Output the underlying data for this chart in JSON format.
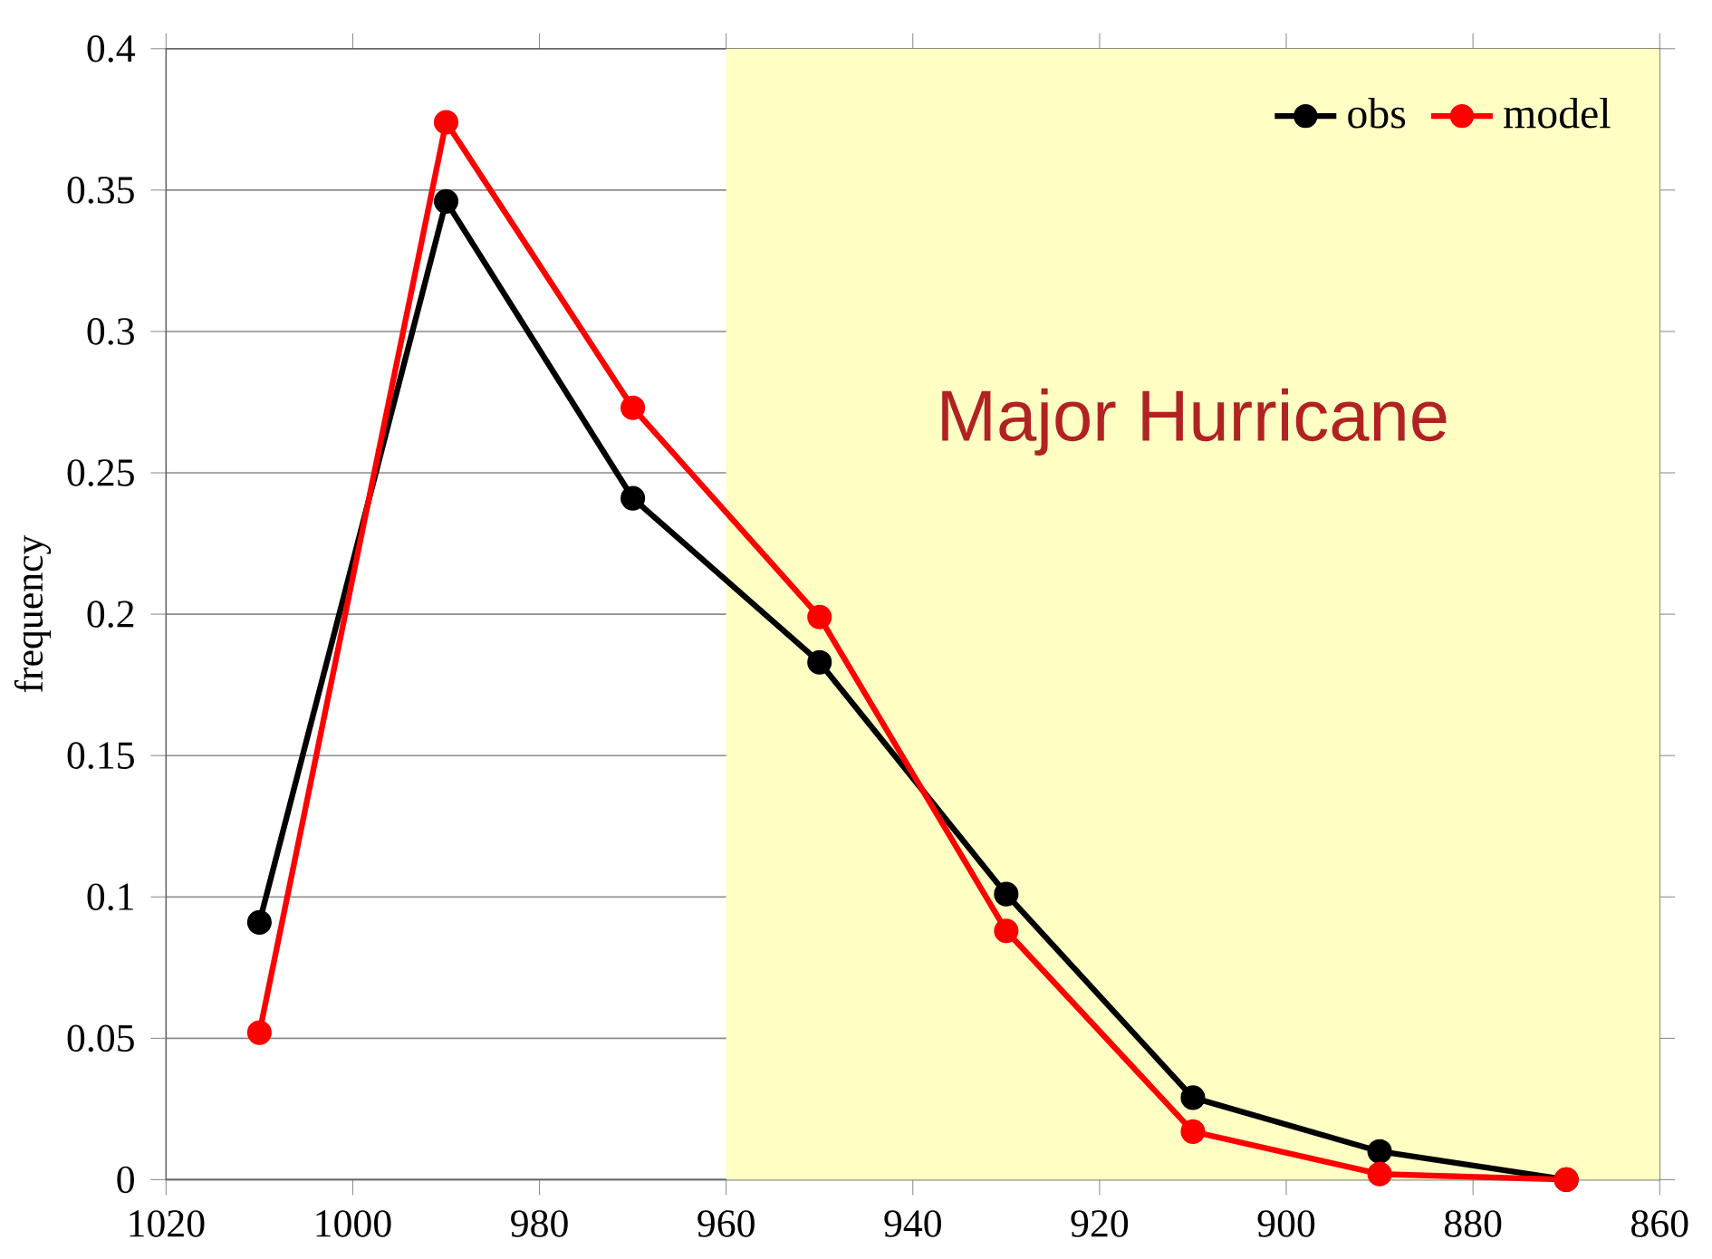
{
  "chart_data": {
    "type": "line",
    "ylabel": "frequency",
    "x": [
      1010,
      990,
      970,
      950,
      930,
      910,
      890,
      870
    ],
    "series": [
      {
        "name": "obs",
        "color": "#000000",
        "values": [
          0.091,
          0.346,
          0.241,
          0.183,
          0.101,
          0.029,
          0.01,
          0.0
        ]
      },
      {
        "name": "model",
        "color": "#ff0000",
        "values": [
          0.052,
          0.374,
          0.273,
          0.199,
          0.088,
          0.017,
          0.002,
          0.0
        ]
      }
    ],
    "xlim": [
      1020,
      860
    ],
    "xticks": [
      1020,
      1000,
      980,
      960,
      940,
      920,
      900,
      880,
      860
    ],
    "ylim": [
      0,
      0.4
    ],
    "yticks": [
      0,
      0.05,
      0.1,
      0.15,
      0.2,
      0.25,
      0.3,
      0.35,
      0.4
    ],
    "bands": [
      {
        "axis": "x",
        "from": 960,
        "to": 860,
        "label": "Major Hurricane",
        "color": "#ffffc4"
      }
    ],
    "grid": "y",
    "legend": "top right",
    "marker": "circle",
    "line_style": "solid"
  }
}
